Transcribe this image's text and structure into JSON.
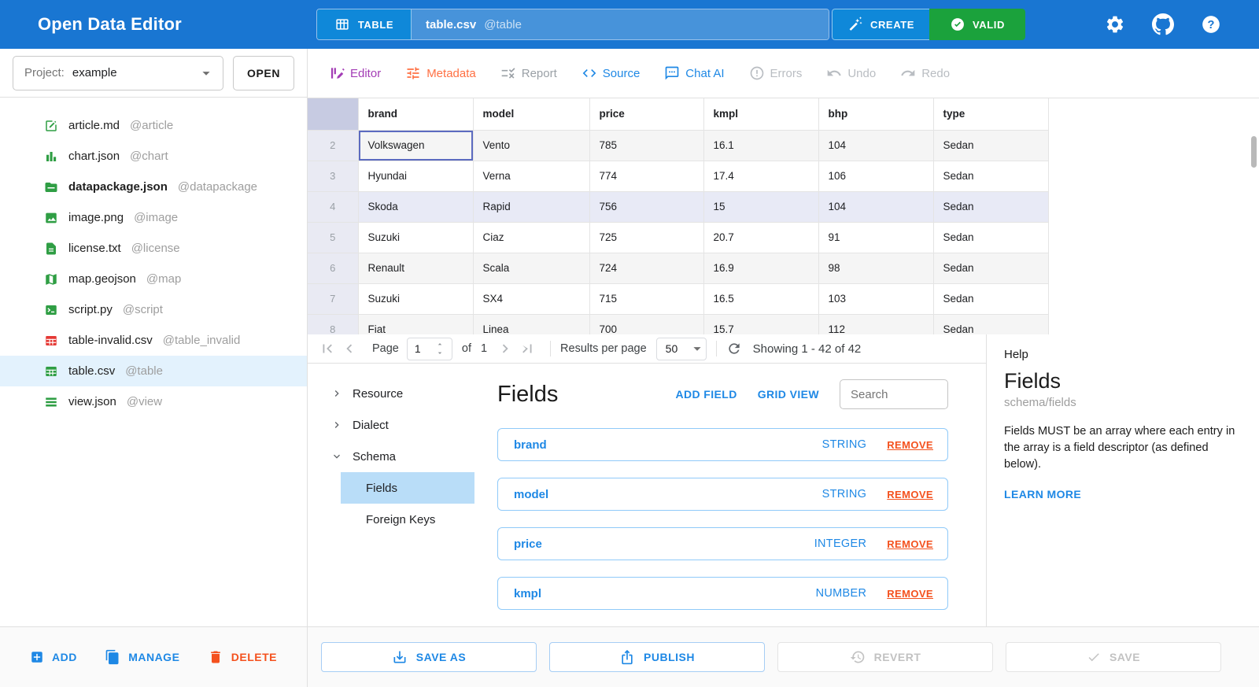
{
  "topbar": {
    "title": "Open Data Editor",
    "table_button": "TABLE",
    "file_name": "table.csv",
    "file_tag": "@table",
    "create_button": "CREATE",
    "valid_button": "VALID"
  },
  "sidebar": {
    "project_label": "Project:",
    "project_value": "example",
    "open_button": "OPEN",
    "files": [
      {
        "name": "article.md",
        "tag": "@article",
        "icon": "edit-square",
        "color": "green",
        "bold": false,
        "selected": false
      },
      {
        "name": "chart.json",
        "tag": "@chart",
        "icon": "bar-chart",
        "color": "green",
        "bold": false,
        "selected": false
      },
      {
        "name": "datapackage.json",
        "tag": "@datapackage",
        "icon": "folder",
        "color": "green",
        "bold": true,
        "selected": false
      },
      {
        "name": "image.png",
        "tag": "@image",
        "icon": "image",
        "color": "green",
        "bold": false,
        "selected": false
      },
      {
        "name": "license.txt",
        "tag": "@license",
        "icon": "document",
        "color": "green",
        "bold": false,
        "selected": false
      },
      {
        "name": "map.geojson",
        "tag": "@map",
        "icon": "map",
        "color": "green",
        "bold": false,
        "selected": false
      },
      {
        "name": "script.py",
        "tag": "@script",
        "icon": "terminal",
        "color": "green",
        "bold": false,
        "selected": false
      },
      {
        "name": "table-invalid.csv",
        "tag": "@table_invalid",
        "icon": "table",
        "color": "red",
        "bold": false,
        "selected": false
      },
      {
        "name": "table.csv",
        "tag": "@table",
        "icon": "table",
        "color": "green",
        "bold": false,
        "selected": true
      },
      {
        "name": "view.json",
        "tag": "@view",
        "icon": "list",
        "color": "green",
        "bold": false,
        "selected": false
      }
    ],
    "footer": {
      "add": "ADD",
      "manage": "MANAGE",
      "delete": "DELETE"
    }
  },
  "toolbar": {
    "tabs": [
      {
        "label": "Editor",
        "icon": "editor",
        "state": "editor"
      },
      {
        "label": "Metadata",
        "icon": "tune",
        "state": "metadata"
      },
      {
        "label": "Report",
        "icon": "rule",
        "state": "disabled"
      },
      {
        "label": "Source",
        "icon": "code",
        "state": "blue"
      },
      {
        "label": "Chat AI",
        "icon": "chat",
        "state": "blue"
      },
      {
        "label": "Errors",
        "icon": "error",
        "state": "muted"
      },
      {
        "label": "Undo",
        "icon": "undo",
        "state": "muted"
      },
      {
        "label": "Redo",
        "icon": "redo",
        "state": "muted"
      }
    ]
  },
  "table": {
    "columns": [
      "brand",
      "model",
      "price",
      "kmpl",
      "bhp",
      "type"
    ],
    "rows": [
      {
        "num": 2,
        "cells": [
          "Volkswagen",
          "Vento",
          "785",
          "16.1",
          "104",
          "Sedan"
        ]
      },
      {
        "num": 3,
        "cells": [
          "Hyundai",
          "Verna",
          "774",
          "17.4",
          "106",
          "Sedan"
        ]
      },
      {
        "num": 4,
        "cells": [
          "Skoda",
          "Rapid",
          "756",
          "15",
          "104",
          "Sedan"
        ]
      },
      {
        "num": 5,
        "cells": [
          "Suzuki",
          "Ciaz",
          "725",
          "20.7",
          "91",
          "Sedan"
        ]
      },
      {
        "num": 6,
        "cells": [
          "Renault",
          "Scala",
          "724",
          "16.9",
          "98",
          "Sedan"
        ]
      },
      {
        "num": 7,
        "cells": [
          "Suzuki",
          "SX4",
          "715",
          "16.5",
          "103",
          "Sedan"
        ]
      },
      {
        "num": 8,
        "cells": [
          "Fiat",
          "Linea",
          "700",
          "15.7",
          "112",
          "Sedan"
        ]
      }
    ],
    "selected_cell": {
      "row_num": 2,
      "col_index": 0
    },
    "highlighted_row_num": 4
  },
  "pagination": {
    "page_label": "Page",
    "page_value": "1",
    "of_label": "of",
    "total_pages": "1",
    "results_label": "Results per page",
    "results_value": "50",
    "showing": "Showing 1 - 42 of 42"
  },
  "schema_panel": {
    "tree": [
      {
        "label": "Resource",
        "state": "collapsed",
        "children": []
      },
      {
        "label": "Dialect",
        "state": "collapsed",
        "children": []
      },
      {
        "label": "Schema",
        "state": "expanded",
        "children": [
          {
            "label": "Fields",
            "selected": true
          },
          {
            "label": "Foreign Keys",
            "selected": false
          }
        ]
      }
    ],
    "fields": {
      "title": "Fields",
      "add_field": "ADD FIELD",
      "grid_view": "GRID VIEW",
      "search_placeholder": "Search",
      "remove_label": "REMOVE",
      "items": [
        {
          "name": "brand",
          "type": "STRING"
        },
        {
          "name": "model",
          "type": "STRING"
        },
        {
          "name": "price",
          "type": "INTEGER"
        },
        {
          "name": "kmpl",
          "type": "NUMBER"
        }
      ]
    }
  },
  "help_panel": {
    "header": "Help",
    "title": "Fields",
    "path": "schema/fields",
    "body": "Fields MUST be an array where each entry in the array is a field descriptor (as defined below).",
    "link": "LEARN MORE"
  },
  "actions": {
    "save_as": "SAVE AS",
    "publish": "PUBLISH",
    "revert": "REVERT",
    "save": "SAVE"
  },
  "colors": {
    "topbar": "#1976d2",
    "topbar_button": "#0f88d9",
    "topbar_field": "#4793da",
    "valid_green": "#1ba23c",
    "accent": "#1e88e5",
    "green_icon": "#2f9e44",
    "red_icon": "#e53935",
    "orange": "#f4511e",
    "metadata_orange": "#ff7043",
    "editor_purple": "#a33cb5",
    "row_highlight": "#e8eaf6",
    "selected_cell_border": "#5c6bc0",
    "file_selected_bg": "#e3f2fd",
    "tree_selected_bg": "#b9ddf8"
  }
}
